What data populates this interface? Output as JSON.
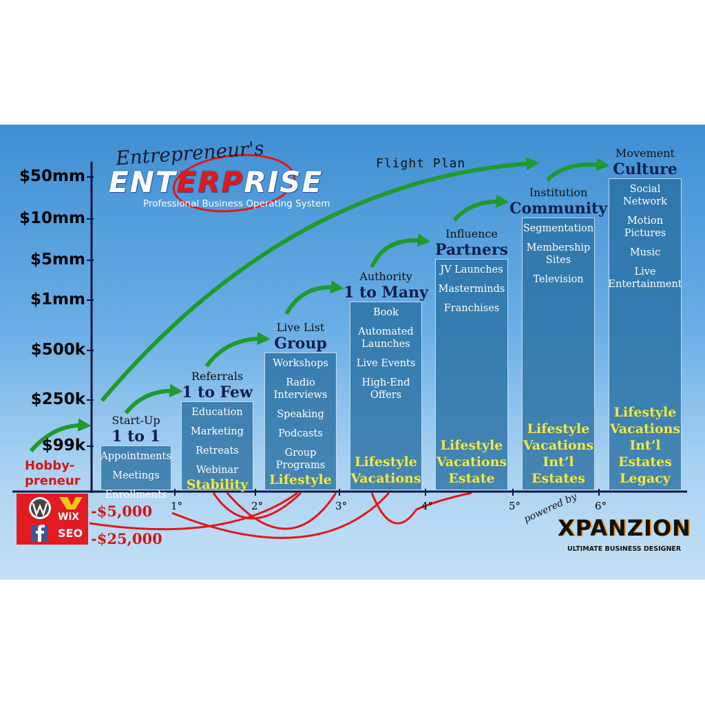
{
  "header": {
    "script_title": "Entrepreneur's",
    "title_parts": [
      "ENT",
      "ERP",
      "RISE"
    ],
    "subtitle": "Professional Business Operating System",
    "flight_plan": "Flight Plan"
  },
  "y_axis_labels": [
    "$50mm",
    "$10mm",
    "$5mm",
    "$1mm",
    "$500k",
    "$250k",
    "$99k"
  ],
  "x_axis_labels": [
    "1°",
    "2°",
    "3°",
    "4°",
    "5°",
    "6°"
  ],
  "hobby": [
    "Hobby-",
    "preneur"
  ],
  "losses": [
    "-$5,000",
    "-$25,000"
  ],
  "badges": [
    "WiX",
    "SEO"
  ],
  "stages": [
    {
      "label": "Start-Up",
      "title": "1 to 1",
      "items": [
        "Appointments",
        "Meetings",
        "Enrollments"
      ],
      "outcome": []
    },
    {
      "label": "Referrals",
      "title": "1 to Few",
      "items": [
        "Education",
        "Marketing",
        "Retreats",
        "Webinar"
      ],
      "outcome": [
        "Stability"
      ]
    },
    {
      "label": "Live List",
      "title": "Group",
      "items": [
        "Workshops",
        "Radio Interviews",
        "Speaking",
        "Podcasts",
        "Group Programs"
      ],
      "outcome": [
        "Lifestyle"
      ]
    },
    {
      "label": "Authority",
      "title": "1 to Many",
      "items": [
        "Book",
        "Automated Launches",
        "Live Events",
        "High-End Offers"
      ],
      "outcome": [
        "Lifestyle",
        "Vacations"
      ]
    },
    {
      "label": "Influence",
      "title": "Partners",
      "items": [
        "JV Launches",
        "Masterminds",
        "Franchises"
      ],
      "outcome": [
        "Lifestyle",
        "Vacations",
        "Estate"
      ]
    },
    {
      "label": "Institution",
      "title": "Community",
      "items": [
        "Segmentation",
        "Membership Sites",
        "Television"
      ],
      "outcome": [
        "Lifestyle",
        "Vacations",
        "Int’l",
        "Estates"
      ]
    },
    {
      "label": "Movement",
      "title": "Culture",
      "items": [
        "Social Network",
        "Motion Pictures",
        "Music",
        "Live Entertainment"
      ],
      "outcome": [
        "Lifestyle",
        "Vacations",
        "Int’l",
        "Estates",
        "Legacy"
      ]
    }
  ],
  "brand": {
    "powered_by": "powered by",
    "name": "XPANZION",
    "tagline": "ULTIMATE BUSINESS DESIGNER"
  }
}
